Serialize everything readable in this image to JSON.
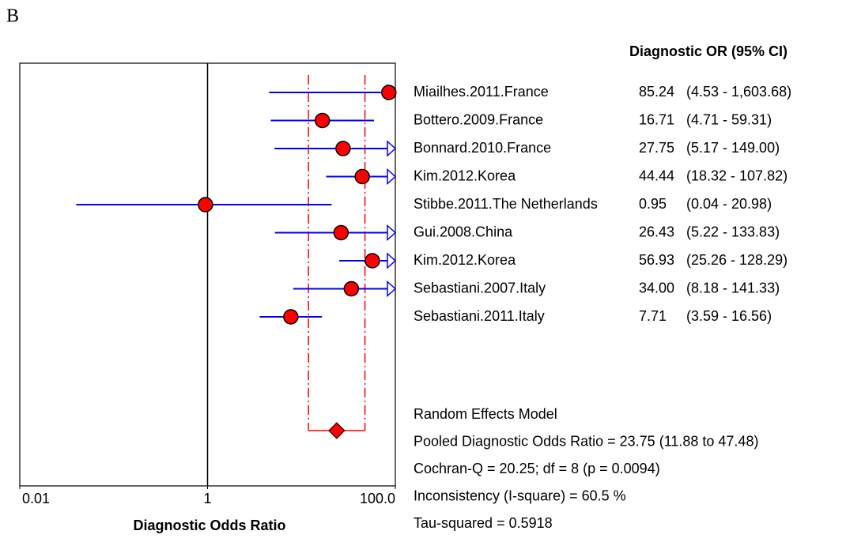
{
  "chart_data": {
    "type": "forest",
    "panel_label": "B",
    "column_header": "Diagnostic OR (95% CI)",
    "x_label": "Diagnostic Odds Ratio",
    "log_x": true,
    "xlim": [
      0.01,
      100
    ],
    "xticks": [
      0.01,
      1,
      {
        "value": 100,
        "label": "100.0"
      }
    ],
    "reference_line": 1,
    "categories": [
      "Miailhes.2011.France",
      "Bottero.2009.France",
      "Bonnard.2010.France",
      "Kim.2012.Korea",
      "Stibbe.2011.The Netherlands",
      "Gui.2008.China",
      "Kim.2012.Korea",
      "Sebastiani.2007.Italy",
      "Sebastiani.2011.Italy"
    ],
    "values": [
      85.24,
      16.71,
      27.75,
      44.44,
      0.95,
      26.43,
      56.93,
      34.0,
      7.71
    ],
    "value_labels": [
      "85.24",
      "16.71",
      "27.75",
      "44.44",
      "0.95",
      "26.43",
      "56.93",
      "34.00",
      "7.71"
    ],
    "lower": [
      4.53,
      4.71,
      5.17,
      18.32,
      0.04,
      5.22,
      25.26,
      8.18,
      3.59
    ],
    "upper": [
      1603.68,
      59.31,
      149.0,
      107.82,
      20.98,
      133.83,
      128.29,
      141.33,
      16.56
    ],
    "ci_labels": [
      "(4.53 - 1,603.68)",
      "(4.71 - 59.31)",
      "(5.17 - 149.00)",
      "(18.32 - 107.82)",
      "(0.04 - 20.98)",
      "(5.22 - 133.83)",
      "(25.26 - 128.29)",
      "(8.18 - 141.33)",
      "(3.59 - 16.56)"
    ],
    "pooled": {
      "value": 23.75,
      "lower": 11.88,
      "upper": 47.48
    },
    "summary_lines": [
      "Random Effects Model",
      "Pooled Diagnostic Odds Ratio = 23.75 (11.88 to 47.48)",
      "Cochran-Q = 20.25; df =  8 (p = 0.0094)",
      "Inconsistency (I-square) = 60.5 %",
      "Tau-squared = 0.5918"
    ],
    "point_color": "#ff0000",
    "ci_color": "#0000ff",
    "pooled_color": "#ff0000"
  }
}
